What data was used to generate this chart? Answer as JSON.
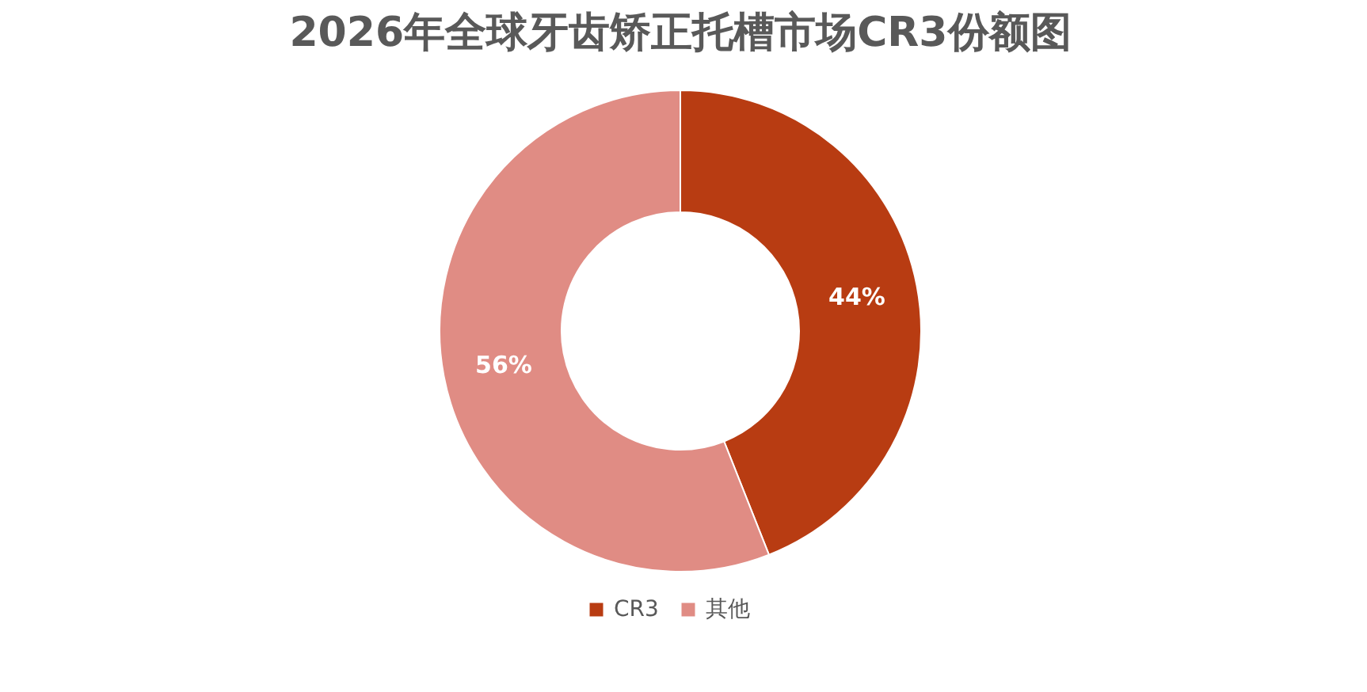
{
  "chart_data": {
    "type": "donut",
    "title": "2026年全球牙齿矫正托槽市场CR3份额图",
    "categories": [
      "CR3",
      "其他"
    ],
    "values": [
      44,
      56
    ],
    "colors": [
      "#b83c12",
      "#e08c84"
    ],
    "value_labels": [
      "44%",
      "56%"
    ],
    "legend": "bottom"
  }
}
